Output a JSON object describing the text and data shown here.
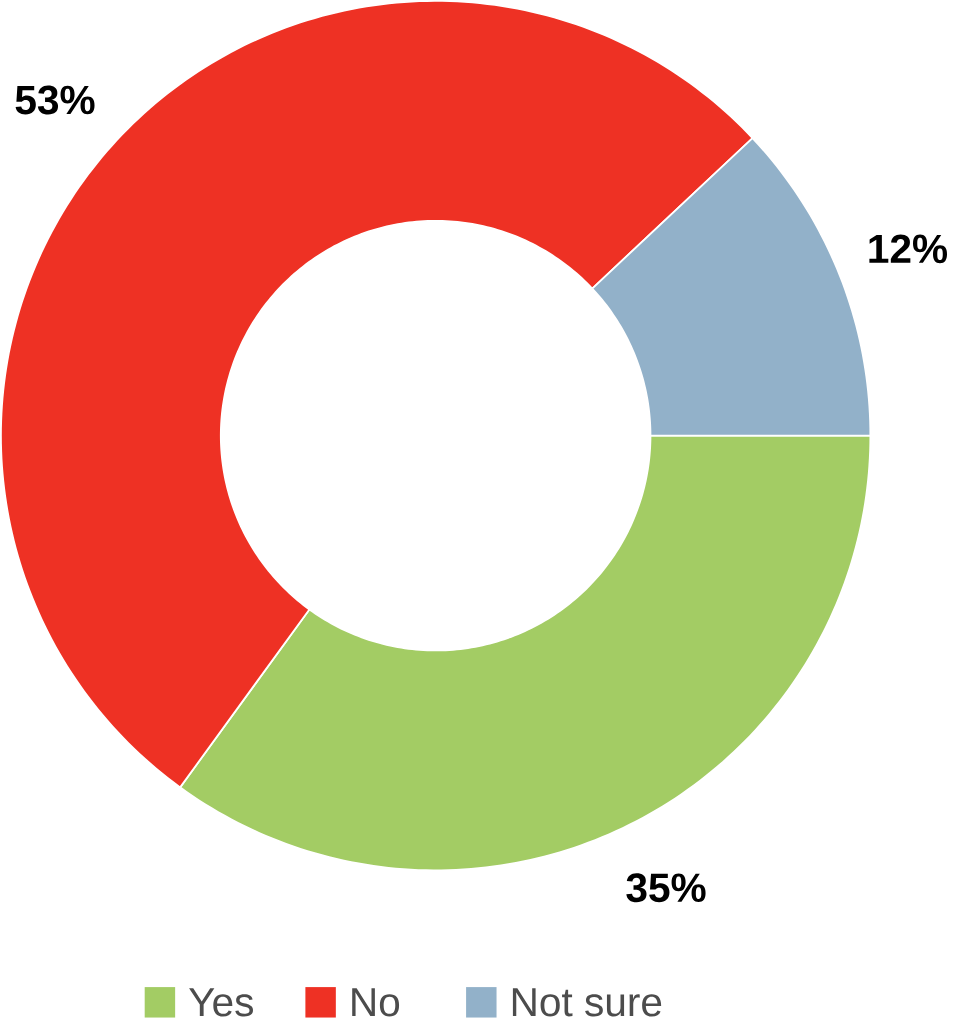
{
  "chart_data": {
    "type": "donut",
    "categories": [
      "Yes",
      "No",
      "Not sure"
    ],
    "values": [
      35,
      53,
      12
    ],
    "colors": [
      "#a3cc64",
      "#ee3124",
      "#92b1c9"
    ],
    "value_labels": [
      "35%",
      "53%",
      "12%"
    ],
    "legend": "bottom"
  }
}
